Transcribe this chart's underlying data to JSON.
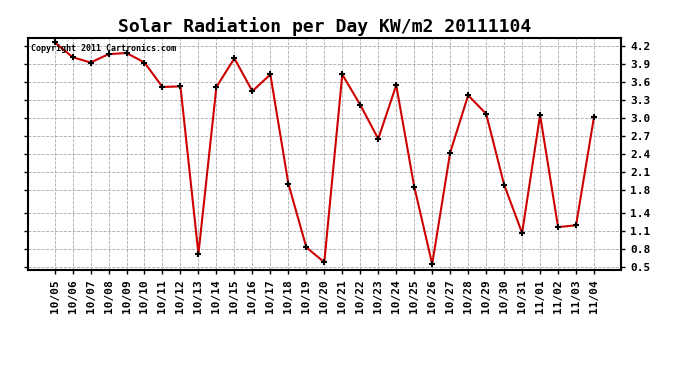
{
  "title": "Solar Radiation per Day KW/m2 20111104",
  "copyright_text": "Copyright 2011 Cartronics.com",
  "x_labels": [
    "10/05",
    "10/06",
    "10/07",
    "10/08",
    "10/09",
    "10/10",
    "10/11",
    "10/12",
    "10/13",
    "10/14",
    "10/15",
    "10/16",
    "10/17",
    "10/18",
    "10/19",
    "10/20",
    "10/21",
    "10/22",
    "10/23",
    "10/24",
    "10/25",
    "10/26",
    "10/27",
    "10/28",
    "10/29",
    "10/30",
    "10/31",
    "11/01",
    "11/02",
    "11/03",
    "11/04"
  ],
  "y_values": [
    4.27,
    4.02,
    3.93,
    4.07,
    4.09,
    3.93,
    3.52,
    3.53,
    0.72,
    3.52,
    4.0,
    3.45,
    3.73,
    1.9,
    0.83,
    0.58,
    3.73,
    3.22,
    2.65,
    3.55,
    1.85,
    0.55,
    2.42,
    3.38,
    3.07,
    1.88,
    1.07,
    3.05,
    1.17,
    1.2,
    3.02
  ],
  "line_color": "#cc0000",
  "marker": "+",
  "marker_color": "#000000",
  "bg_color": "#ffffff",
  "grid_color": "#aaaaaa",
  "yticks": [
    0.5,
    0.8,
    1.1,
    1.4,
    1.8,
    2.1,
    2.4,
    2.7,
    3.0,
    3.3,
    3.6,
    3.9,
    4.2
  ],
  "title_fontsize": 13,
  "tick_fontsize": 8
}
